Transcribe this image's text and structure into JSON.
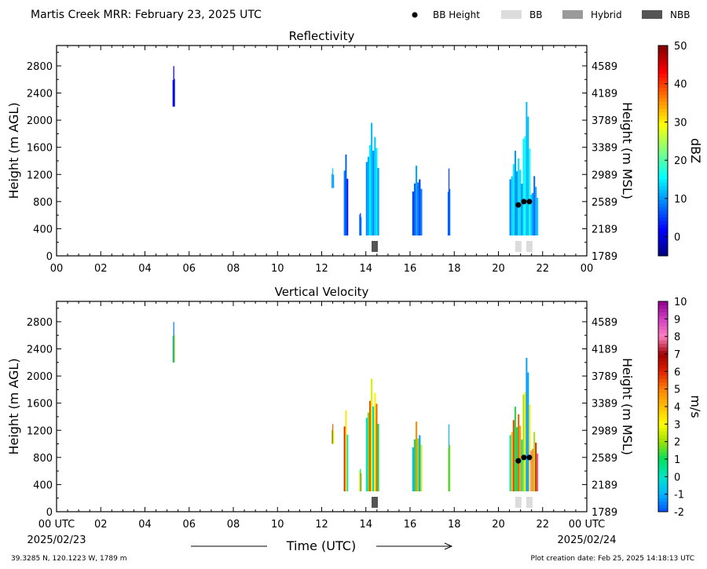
{
  "header": {
    "title": "Martis Creek MRR:  February 23, 2025 UTC",
    "legend": [
      {
        "label": "BB Height",
        "kind": "dot",
        "color": "#000000"
      },
      {
        "label": "BB",
        "kind": "box",
        "color": "#dcdcdc"
      },
      {
        "label": "Hybrid",
        "kind": "box",
        "color": "#9a9a9a"
      },
      {
        "label": "NBB",
        "kind": "box",
        "color": "#555555"
      }
    ]
  },
  "footer": {
    "location": "39.3285 N, 120.1223 W, 1789 m",
    "created": "Plot creation date: Feb 25, 2025 14:18:13 UTC",
    "xlabel": "Time (UTC)",
    "start_label": "00 UTC",
    "start_date": "2025/02/23",
    "end_label": "00 UTC",
    "end_date": "2025/02/24"
  },
  "chart_data": [
    {
      "type": "heatmap",
      "title": "Reflectivity",
      "ylabel": "Height (m AGL)",
      "ylabel_right": "Height (m MSL)",
      "colorbar_label": "dBZ",
      "xlim": [
        0,
        24
      ],
      "ylim": [
        0,
        3100
      ],
      "xticks": [
        "00",
        "02",
        "04",
        "06",
        "08",
        "10",
        "12",
        "14",
        "16",
        "18",
        "20",
        "22",
        "00"
      ],
      "yticks": [
        0,
        400,
        800,
        1200,
        1600,
        2000,
        2400,
        2800
      ],
      "yticks_right": [
        "1789",
        "2189",
        "2589",
        "2989",
        "3389",
        "3789",
        "4189",
        "4589"
      ],
      "colorbar": {
        "min": -5,
        "max": 50,
        "ticks": [
          0,
          10,
          20,
          30,
          40,
          50
        ],
        "stops": [
          "#00007f",
          "#0000ff",
          "#007fff",
          "#00ffff",
          "#7fff7f",
          "#ffff00",
          "#ff7f00",
          "#ff0000",
          "#7f0000"
        ]
      },
      "bb_height": [
        {
          "time": 20.9,
          "height": 750
        },
        {
          "time": 21.15,
          "height": 800
        },
        {
          "time": 21.4,
          "height": 800
        }
      ],
      "bb_type": [
        {
          "time": 14.4,
          "type": "NBB"
        },
        {
          "time": 20.9,
          "type": "BB"
        },
        {
          "time": 21.4,
          "type": "BB"
        }
      ],
      "echoes": [
        {
          "t0": 5.25,
          "t1": 5.35,
          "bottom": 2200,
          "top": 2800,
          "value": 2
        },
        {
          "t0": 12.45,
          "t1": 12.55,
          "bottom": 1000,
          "top": 1300,
          "value": 10
        },
        {
          "t0": 13.0,
          "t1": 13.2,
          "bottom": 300,
          "top": 1600,
          "value": 6
        },
        {
          "t0": 13.7,
          "t1": 13.8,
          "bottom": 300,
          "top": 700,
          "value": 8
        },
        {
          "t0": 14.0,
          "t1": 14.6,
          "bottom": 300,
          "top": 2000,
          "value": 12
        },
        {
          "t0": 16.1,
          "t1": 16.55,
          "bottom": 300,
          "top": 1350,
          "value": 8
        },
        {
          "t0": 17.7,
          "t1": 17.82,
          "bottom": 300,
          "top": 1300,
          "value": 8
        },
        {
          "t0": 20.5,
          "t1": 21.1,
          "bottom": 300,
          "top": 1600,
          "value": 12
        },
        {
          "t0": 21.1,
          "t1": 21.45,
          "bottom": 300,
          "top": 2400,
          "value": 14
        },
        {
          "t0": 21.45,
          "t1": 21.8,
          "bottom": 300,
          "top": 1200,
          "value": 10
        }
      ]
    },
    {
      "type": "heatmap",
      "title": "Vertical Velocity",
      "ylabel": "Height (m AGL)",
      "ylabel_right": "Height (m MSL)",
      "colorbar_label": "m/s",
      "xlim": [
        0,
        24
      ],
      "ylim": [
        0,
        3100
      ],
      "xticks": [
        "00 UTC",
        "02",
        "04",
        "06",
        "08",
        "10",
        "12",
        "14",
        "16",
        "18",
        "20",
        "22",
        "00 UTC"
      ],
      "yticks": [
        0,
        400,
        800,
        1200,
        1600,
        2000,
        2400,
        2800
      ],
      "yticks_right": [
        "1789",
        "2189",
        "2589",
        "2989",
        "3389",
        "3789",
        "4189",
        "4589"
      ],
      "colorbar": {
        "min": -2,
        "max": 10,
        "ticks": [
          -2,
          -1,
          0,
          1,
          2,
          3,
          4,
          5,
          6,
          7,
          8,
          9,
          10
        ],
        "stops": [
          "#0050ff",
          "#00b4ff",
          "#00e6c8",
          "#00e060",
          "#9de000",
          "#ffff00",
          "#ffc000",
          "#ff8000",
          "#e02000",
          "#a00000",
          "#ff80c0",
          "#d040c0",
          "#900090"
        ]
      },
      "bb_height": [
        {
          "time": 20.9,
          "height": 750
        },
        {
          "time": 21.15,
          "height": 800
        },
        {
          "time": 21.4,
          "height": 800
        }
      ],
      "bb_type": [
        {
          "time": 14.4,
          "type": "NBB"
        },
        {
          "time": 20.9,
          "type": "BB"
        },
        {
          "time": 21.4,
          "type": "BB"
        }
      ],
      "echoes": [
        {
          "t0": 5.25,
          "t1": 5.35,
          "bottom": 2200,
          "top": 2800,
          "value": 1.3
        },
        {
          "t0": 12.45,
          "t1": 12.55,
          "bottom": 1000,
          "top": 1300,
          "value": 2.5
        },
        {
          "t0": 13.0,
          "t1": 13.2,
          "bottom": 300,
          "top": 1600,
          "value": 3
        },
        {
          "t0": 13.7,
          "t1": 13.8,
          "bottom": 300,
          "top": 700,
          "value": 3.5
        },
        {
          "t0": 14.0,
          "t1": 14.6,
          "bottom": 300,
          "top": 2000,
          "value": 2.5
        },
        {
          "t0": 16.1,
          "t1": 16.55,
          "bottom": 300,
          "top": 1350,
          "value": 1.8
        },
        {
          "t0": 17.7,
          "t1": 17.82,
          "bottom": 300,
          "top": 1300,
          "value": 2
        },
        {
          "t0": 20.5,
          "t1": 21.1,
          "bottom": 300,
          "top": 1600,
          "value": 3
        },
        {
          "t0": 21.1,
          "t1": 21.45,
          "bottom": 300,
          "top": 2400,
          "value": 0.8
        },
        {
          "t0": 21.45,
          "t1": 21.8,
          "bottom": 300,
          "top": 1200,
          "value": 5
        }
      ]
    }
  ]
}
